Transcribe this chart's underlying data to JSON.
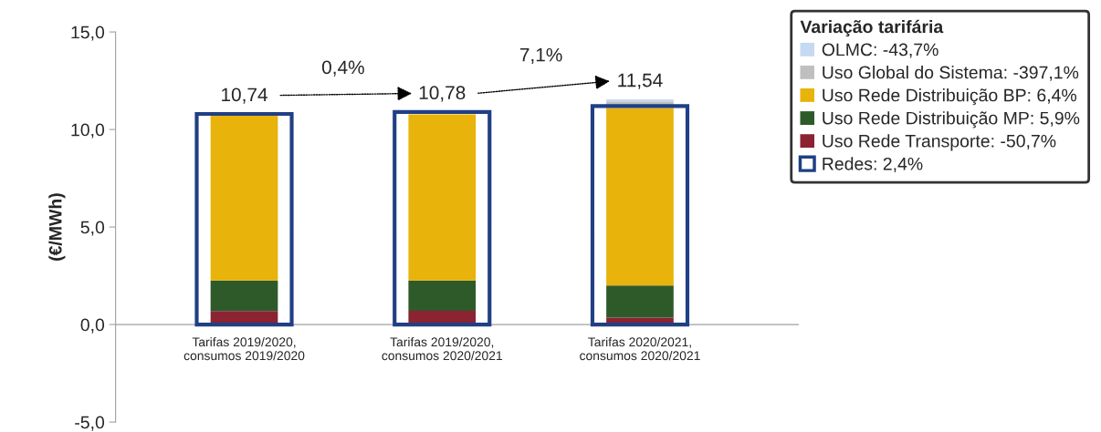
{
  "chart_data": [
    {
      "type": "bar",
      "stacked": true,
      "ylabel": "(€/MWh)",
      "categories": [
        "Tarifas 2019/2020,\nconsumos 2019/2020",
        "Tarifas 2019/2020,\nconsumos 2020/2021",
        "Tarifas 2020/2021,\nconsumos 2020/2021"
      ],
      "series": [
        {
          "name": "Uso Rede Transporte: -50,7%",
          "color": "#8b2332",
          "values": [
            0.69,
            0.7,
            0.36
          ]
        },
        {
          "name": "Uso Rede Distribuição MP: 5,9%",
          "color": "#2e5a2a",
          "values": [
            1.57,
            1.56,
            1.64
          ]
        },
        {
          "name": "Uso Rede Distribuição BP: 6,4%",
          "color": "#e8b30a",
          "values": [
            8.48,
            8.52,
            9.1
          ]
        },
        {
          "name": "Uso Global do Sistema: -397,1%",
          "color": "#bfbfbf",
          "values": [
            0,
            0,
            0.34
          ]
        },
        {
          "name": "OLMC: -43,7%",
          "color": "#c5d9f1",
          "values": [
            0,
            0,
            0.1
          ]
        }
      ],
      "totals": [
        "10,74",
        "10,78",
        "11,54"
      ],
      "annotations": [
        "0,4%",
        "7,1%"
      ],
      "legend_title": "Variação tarifária",
      "legend": "top right",
      "ylim": [
        -5,
        15
      ],
      "yticks": [
        {
          "value": -5,
          "label": "-5,0"
        },
        {
          "value": 0,
          "label": "0,0"
        },
        {
          "value": 5,
          "label": "5,0"
        },
        {
          "value": 10,
          "label": "10,0"
        },
        {
          "value": 15,
          "label": "15,0"
        }
      ],
      "grid": false
    },
    {
      "type": "bar",
      "categories": [
        null,
        null,
        null
      ],
      "series": [
        {
          "name": "Redes: 2,4%",
          "color": "#203f85",
          "values": [
            10.8,
            10.9,
            11.2
          ]
        }
      ],
      "legend": "top right",
      "ylim": [
        -5,
        15
      ],
      "tick_labels": false
    }
  ]
}
